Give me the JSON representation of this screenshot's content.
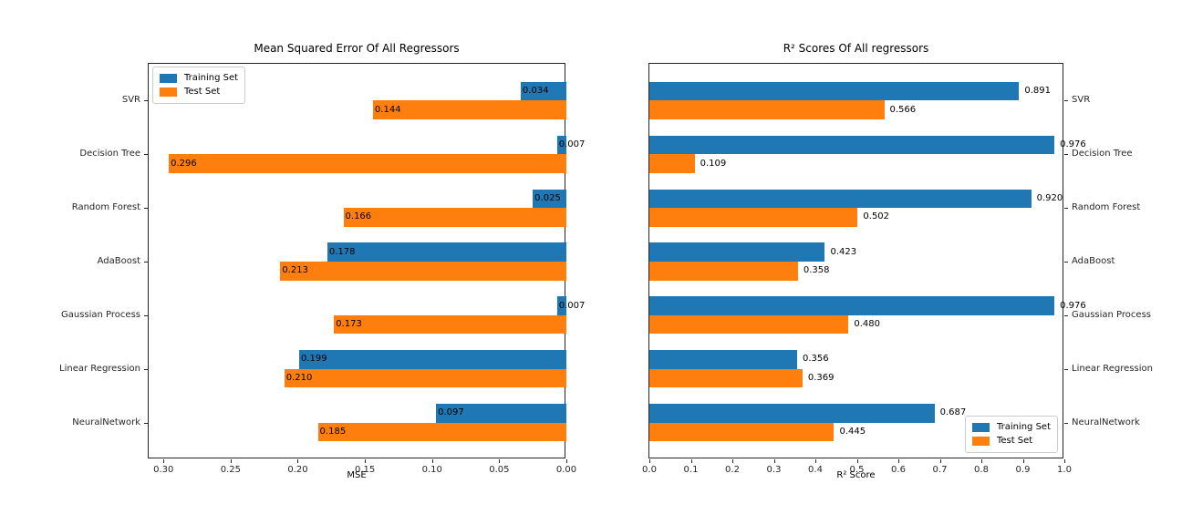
{
  "figure": {
    "background": "#ffffff",
    "text_color": "#000000",
    "series_colors": {
      "Training Set": "#1f77b4",
      "Test Set": "#ff7f0e"
    }
  },
  "chart_data": [
    {
      "type": "bar",
      "orientation": "horizontal",
      "title": "Mean Squared Error Of All Regressors",
      "xlabel": "MSE",
      "x_axis_reversed": true,
      "xlim": [
        0.311,
        0
      ],
      "xticks": {
        "values": [
          0.3,
          0.25,
          0.2,
          0.15,
          0.1,
          0.05,
          0.0
        ],
        "labels": [
          "0.30",
          "0.25",
          "0.20",
          "0.15",
          "0.10",
          "0.05",
          "0.00"
        ]
      },
      "category_label_side": "left",
      "legend_location": "upper left",
      "grid": false,
      "categories": [
        "SVR",
        "Decision Tree",
        "Random Forest",
        "AdaBoost",
        "Gaussian Process",
        "Linear Regression",
        "NeuralNetwork"
      ],
      "series": [
        {
          "name": "Training Set",
          "color": "#1f77b4",
          "values": [
            0.034,
            0.007,
            0.025,
            0.178,
            0.007,
            0.199,
            0.097
          ],
          "labels": [
            "0.034",
            "0.007",
            "0.025",
            "0.178",
            "0.007",
            "0.199",
            "0.097"
          ]
        },
        {
          "name": "Test Set",
          "color": "#ff7f0e",
          "values": [
            0.144,
            0.296,
            0.166,
            0.213,
            0.173,
            0.21,
            0.185
          ],
          "labels": [
            "0.144",
            "0.296",
            "0.166",
            "0.213",
            "0.173",
            "0.210",
            "0.185"
          ]
        }
      ]
    },
    {
      "type": "bar",
      "orientation": "horizontal",
      "title": "R² Scores Of All regressors",
      "xlabel": "R² Score",
      "x_axis_reversed": false,
      "xlim": [
        0,
        1.0
      ],
      "xticks": {
        "values": [
          0.0,
          0.1,
          0.2,
          0.3,
          0.4,
          0.5,
          0.6,
          0.7,
          0.8,
          0.9,
          1.0
        ],
        "labels": [
          "0.0",
          "0.1",
          "0.2",
          "0.3",
          "0.4",
          "0.5",
          "0.6",
          "0.7",
          "0.8",
          "0.9",
          "1.0"
        ]
      },
      "category_label_side": "right",
      "legend_location": "lower right",
      "grid": false,
      "categories": [
        "SVR",
        "Decision Tree",
        "Random Forest",
        "AdaBoost",
        "Gaussian Process",
        "Linear Regression",
        "NeuralNetwork"
      ],
      "series": [
        {
          "name": "Training Set",
          "color": "#1f77b4",
          "values": [
            0.891,
            0.976,
            0.92,
            0.423,
            0.976,
            0.356,
            0.687
          ],
          "labels": [
            "0.891",
            "0.976",
            "0.920",
            "0.423",
            "0.976",
            "0.356",
            "0.687"
          ]
        },
        {
          "name": "Test Set",
          "color": "#ff7f0e",
          "values": [
            0.566,
            0.109,
            0.502,
            0.358,
            0.48,
            0.369,
            0.445
          ],
          "labels": [
            "0.566",
            "0.109",
            "0.502",
            "0.358",
            "0.480",
            "0.369",
            "0.445"
          ]
        }
      ]
    }
  ]
}
